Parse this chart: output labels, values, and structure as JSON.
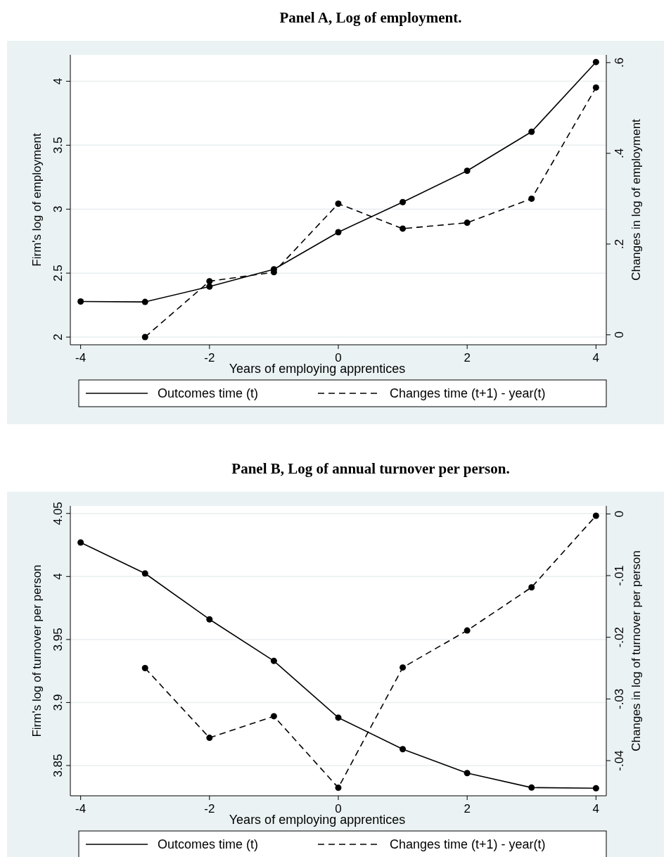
{
  "chart_data": [
    {
      "type": "line",
      "title": "Panel A, Log of employment.",
      "xlabel": "Years of employing apprentices",
      "ylabel": "Firm's log of employment",
      "y2label": "Changes in log of employment",
      "x": [
        -4,
        -3,
        -2,
        -1,
        0,
        1,
        2,
        3,
        4
      ],
      "xlim": [
        -4.16,
        4.16
      ],
      "xticks": [
        -4,
        -2,
        0,
        2,
        4
      ],
      "ylim": [
        1.94,
        4.206
      ],
      "yticks": [
        2,
        2.5,
        3,
        3.5,
        4
      ],
      "y2lim": [
        -0.022,
        0.617
      ],
      "y2ticks": [
        0,
        {
          "value": 0.2,
          "label": ".2"
        },
        {
          "value": 0.4,
          "label": ".4"
        },
        {
          "value": 0.6,
          "label": ".6"
        }
      ],
      "grid": "y",
      "legend": "bottom",
      "marker": "circle",
      "series": [
        {
          "name": "Outcomes time (t)",
          "color": "#000000",
          "line_style": "solid",
          "values": [
            2.278,
            2.275,
            2.395,
            2.53,
            2.82,
            3.055,
            3.3,
            3.605,
            4.15
          ]
        },
        {
          "name": "Changes time (t+1) - year(t)",
          "color": "#000000",
          "line_style": "dashed",
          "axis": "y2",
          "values": [
            null,
            -0.005,
            0.118,
            0.138,
            0.289,
            0.234,
            0.247,
            0.3,
            0.545
          ]
        }
      ]
    },
    {
      "type": "line",
      "title": "Panel B, Log of annual turnover per person.",
      "xlabel": "Years of employing apprentices",
      "ylabel": "Firm's log of turnover per person",
      "y2label": "Changes in log of turnover per person",
      "x": [
        -4,
        -3,
        -2,
        -1,
        0,
        1,
        2,
        3,
        4
      ],
      "xlim": [
        -4.16,
        4.16
      ],
      "xticks": [
        -4,
        -2,
        0,
        2,
        4
      ],
      "ylim": [
        3.826,
        4.056
      ],
      "yticks": [
        3.85,
        3.9,
        3.95,
        4,
        4.05
      ],
      "y2lim": [
        -0.0457,
        0.0013
      ],
      "y2ticks": [
        {
          "value": -0.04,
          "label": "-.04"
        },
        {
          "value": -0.03,
          "label": "-.03"
        },
        {
          "value": -0.02,
          "label": "-.02"
        },
        {
          "value": -0.01,
          "label": "-.01"
        },
        0
      ],
      "grid": "y",
      "legend": "bottom",
      "marker": "circle",
      "series": [
        {
          "name": "Outcomes time (t)",
          "color": "#000000",
          "line_style": "solid",
          "values": [
            4.027,
            4.0024,
            3.966,
            3.933,
            3.888,
            3.863,
            3.844,
            3.8325,
            3.832
          ]
        },
        {
          "name": "Changes time (t+1) - year(t)",
          "color": "#000000",
          "line_style": "dashed",
          "axis": "y2",
          "values": [
            null,
            -0.025,
            -0.0363,
            -0.0328,
            -0.0444,
            -0.0249,
            -0.0189,
            -0.0119,
            -0.0003
          ]
        }
      ]
    }
  ]
}
